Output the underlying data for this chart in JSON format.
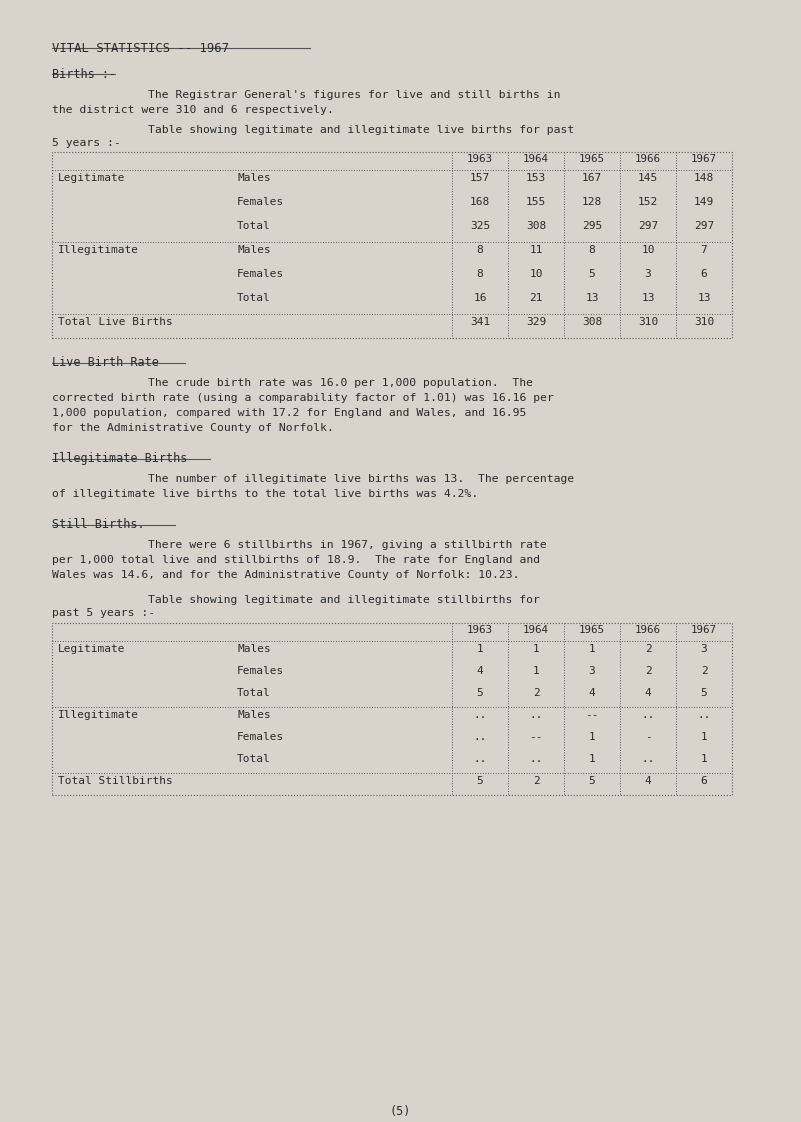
{
  "bg_color": "#d8d4cc",
  "text_color": "#2a2a2a",
  "line_color": "#555555",
  "title": "VITAL STATISTICS -- 1967",
  "section1_header": "Births :-",
  "section1_intro1": "The Registrar General's figures for live and still births in",
  "section1_intro2": "the district were 310 and 6 respectively.",
  "table1_caption1": "Table showing legitimate and illegitimate live births for past",
  "table1_caption2": "5 years :-",
  "table1_years": [
    "1963",
    "1964",
    "1965",
    "1966",
    "1967"
  ],
  "table1_rows": [
    [
      "Legitimate",
      "Males",
      "157",
      "153",
      "167",
      "145",
      "148"
    ],
    [
      "",
      "Females",
      "168",
      "155",
      "128",
      "152",
      "149"
    ],
    [
      "",
      "Total",
      "325",
      "308",
      "295",
      "297",
      "297"
    ],
    [
      "Illegitimate",
      "Males",
      "8",
      "11",
      "8",
      "10",
      "7"
    ],
    [
      "",
      "Females",
      "8",
      "10",
      "5",
      "3",
      "6"
    ],
    [
      "",
      "Total",
      "16",
      "21",
      "13",
      "13",
      "13"
    ],
    [
      "Total Live Births",
      "",
      "341",
      "329",
      "308",
      "310",
      "310"
    ]
  ],
  "section2_header": "Live Birth Rate",
  "section2_text": [
    "The crude birth rate was 16.0 per 1,000 population.  The",
    "corrected birth rate (using a comparability factor of 1.01) was 16.16 per",
    "1,000 population, compared with 17.2 for England and Wales, and 16.95",
    "for the Administrative County of Norfolk."
  ],
  "section3_header": "Illegitimate Births",
  "section3_text": [
    "The number of illegitimate live births was 13.  The percentage",
    "of illegitimate live births to the total live births was 4.2%."
  ],
  "section4_header": "Still Births.",
  "section4_text": [
    "There were 6 stillbirths in 1967, giving a stillbirth rate",
    "per 1,000 total live and stillbirths of 18.9.  The rate for England and",
    "Wales was 14.6, and for the Administrative County of Norfolk: 10.23."
  ],
  "table2_caption1": "Table showing legitimate and illegitimate stillbirths for",
  "table2_caption2": "past 5 years :-",
  "table2_years": [
    "1963",
    "1964",
    "1965",
    "1966",
    "1967"
  ],
  "table2_rows": [
    [
      "Legitimate",
      "Males",
      "1",
      "1",
      "1",
      "2",
      "3"
    ],
    [
      "",
      "Females",
      "4",
      "1",
      "3",
      "2",
      "2"
    ],
    [
      "",
      "Total",
      "5",
      "2",
      "4",
      "4",
      "5"
    ],
    [
      "Illegitimate",
      "Males",
      "..",
      "..",
      "--",
      "..",
      ".."
    ],
    [
      "",
      "Females",
      "..",
      "--",
      "1",
      "-",
      "1"
    ],
    [
      "",
      "Total",
      "..",
      "..",
      "1",
      "..",
      "1"
    ],
    [
      "Total Stillbirths",
      "",
      "5",
      "2",
      "5",
      "4",
      "6"
    ]
  ],
  "footer": "(5)"
}
